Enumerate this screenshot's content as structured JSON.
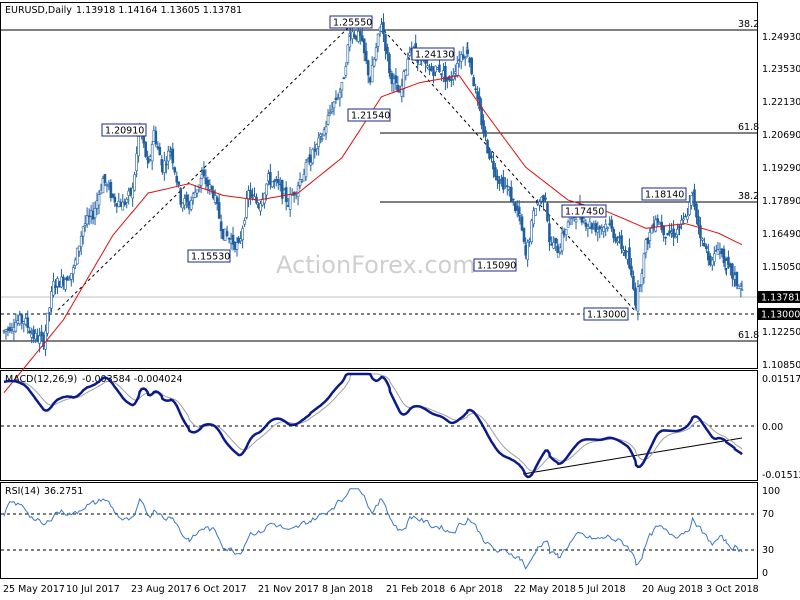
{
  "header": {
    "symbol": "EURUSD,Daily",
    "ohlc": "1.13918 1.14164 1.13605 1.13781"
  },
  "watermark": "ActionForex.com",
  "colors": {
    "candles": "#1f5fa0",
    "ma": "#e01010",
    "macd": "#0a1a8a",
    "signal": "#a0a0a0",
    "rsi": "#3a78c8",
    "box_border": "#1a2a8a",
    "grid_dash": "#000000"
  },
  "chart_data": [
    {
      "type": "candlestick",
      "title": "EURUSD,Daily",
      "price_axis_ticks": [
        "1.24930",
        "1.23530",
        "1.22130",
        "1.20690",
        "1.19290",
        "1.17890",
        "1.16490",
        "1.15050",
        "1.13650",
        "1.12250",
        "1.10850"
      ],
      "ylim": [
        1.1045,
        1.2595
      ],
      "current_price": "1.13781",
      "support_label": "1.13000",
      "date_ticks": [
        "25 May 2017",
        "10 Jul 2017",
        "23 Aug 2017",
        "6 Oct 2017",
        "21 Nov 2017",
        "8 Jan 2018",
        "21 Feb 2018",
        "6 Apr 2018",
        "22 May 2018",
        "5 Jul 2018",
        "20 Aug 2018",
        "3 Oct 2018"
      ],
      "annotations": [
        "1.25550",
        "1.24130",
        "1.21540",
        "1.20910",
        "1.15530",
        "1.15090",
        "1.17450",
        "1.18140",
        "1.13000"
      ],
      "fib_labels": [
        "38.2",
        "61.8",
        "38.2",
        "61.8"
      ],
      "price_path": [
        [
          "2017-05-25",
          1.12
        ],
        [
          "2017-06-01",
          1.124
        ],
        [
          "2017-06-08",
          1.125
        ],
        [
          "2017-06-15",
          1.118
        ],
        [
          "2017-06-22",
          1.116
        ],
        [
          "2017-06-29",
          1.14
        ],
        [
          "2017-07-06",
          1.142
        ],
        [
          "2017-07-13",
          1.146
        ],
        [
          "2017-07-20",
          1.165
        ],
        [
          "2017-07-27",
          1.17
        ],
        [
          "2017-08-03",
          1.185
        ],
        [
          "2017-08-10",
          1.177
        ],
        [
          "2017-08-17",
          1.174
        ],
        [
          "2017-08-24",
          1.18
        ],
        [
          "2017-08-29",
          1.207
        ],
        [
          "2017-09-04",
          1.19
        ],
        [
          "2017-09-08",
          1.205
        ],
        [
          "2017-09-14",
          1.19
        ],
        [
          "2017-09-20",
          1.198
        ],
        [
          "2017-09-27",
          1.176
        ],
        [
          "2017-10-03",
          1.174
        ],
        [
          "2017-10-12",
          1.186
        ],
        [
          "2017-10-20",
          1.179
        ],
        [
          "2017-10-27",
          1.162
        ],
        [
          "2017-11-07",
          1.156
        ],
        [
          "2017-11-14",
          1.179
        ],
        [
          "2017-11-21",
          1.174
        ],
        [
          "2017-11-28",
          1.185
        ],
        [
          "2017-12-05",
          1.182
        ],
        [
          "2017-12-12",
          1.175
        ],
        [
          "2017-12-19",
          1.183
        ],
        [
          "2017-12-28",
          1.194
        ],
        [
          "2018-01-05",
          1.203
        ],
        [
          "2018-01-12",
          1.216
        ],
        [
          "2018-01-19",
          1.224
        ],
        [
          "2018-01-25",
          1.248
        ],
        [
          "2018-02-01",
          1.245
        ],
        [
          "2018-02-08",
          1.227
        ],
        [
          "2018-02-16",
          1.252
        ],
        [
          "2018-02-22",
          1.23
        ],
        [
          "2018-03-01",
          1.22
        ],
        [
          "2018-03-08",
          1.241
        ],
        [
          "2018-03-15",
          1.236
        ],
        [
          "2018-03-22",
          1.231
        ],
        [
          "2018-03-29",
          1.232
        ],
        [
          "2018-04-05",
          1.226
        ],
        [
          "2018-04-12",
          1.237
        ],
        [
          "2018-04-18",
          1.24
        ],
        [
          "2018-04-25",
          1.217
        ],
        [
          "2018-05-02",
          1.198
        ],
        [
          "2018-05-09",
          1.186
        ],
        [
          "2018-05-16",
          1.181
        ],
        [
          "2018-05-25",
          1.168
        ],
        [
          "2018-05-29",
          1.152
        ],
        [
          "2018-06-05",
          1.174
        ],
        [
          "2018-06-12",
          1.178
        ],
        [
          "2018-06-15",
          1.158
        ],
        [
          "2018-06-21",
          1.155
        ],
        [
          "2018-06-28",
          1.167
        ],
        [
          "2018-07-05",
          1.171
        ],
        [
          "2018-07-12",
          1.166
        ],
        [
          "2018-07-19",
          1.164
        ],
        [
          "2018-07-26",
          1.166
        ],
        [
          "2018-08-02",
          1.159
        ],
        [
          "2018-08-09",
          1.152
        ],
        [
          "2018-08-15",
          1.132
        ],
        [
          "2018-08-22",
          1.157
        ],
        [
          "2018-08-29",
          1.169
        ],
        [
          "2018-09-05",
          1.162
        ],
        [
          "2018-09-12",
          1.162
        ],
        [
          "2018-09-19",
          1.168
        ],
        [
          "2018-09-24",
          1.178
        ],
        [
          "2018-10-01",
          1.158
        ],
        [
          "2018-10-08",
          1.149
        ],
        [
          "2018-10-12",
          1.157
        ],
        [
          "2018-10-18",
          1.148
        ],
        [
          "2018-10-24",
          1.142
        ],
        [
          "2018-10-29",
          1.1378
        ]
      ],
      "ma_path": [
        [
          "2017-05-25",
          1.094
        ],
        [
          "2017-07-06",
          1.125
        ],
        [
          "2017-08-10",
          1.161
        ],
        [
          "2017-09-04",
          1.179
        ],
        [
          "2017-10-03",
          1.183
        ],
        [
          "2017-10-27",
          1.178
        ],
        [
          "2017-11-21",
          1.176
        ],
        [
          "2017-12-19",
          1.179
        ],
        [
          "2018-01-19",
          1.194
        ],
        [
          "2018-02-16",
          1.22
        ],
        [
          "2018-03-15",
          1.226
        ],
        [
          "2018-04-12",
          1.229
        ],
        [
          "2018-05-02",
          1.212
        ],
        [
          "2018-05-29",
          1.19
        ],
        [
          "2018-06-28",
          1.176
        ],
        [
          "2018-07-26",
          1.171
        ],
        [
          "2018-08-22",
          1.164
        ],
        [
          "2018-09-19",
          1.166
        ],
        [
          "2018-10-12",
          1.162
        ],
        [
          "2018-10-29",
          1.157
        ]
      ]
    },
    {
      "type": "line",
      "title": "MACD(12,26,9)",
      "values_text": "-0.003584 -0.004024",
      "y_ticks": [
        "0.015178",
        "0.00",
        "-0.015126"
      ],
      "ylim": [
        -0.0175,
        0.0175
      ]
    },
    {
      "type": "line",
      "title": "RSI(14)",
      "values_text": "36.2751",
      "y_ticks": [
        "100",
        "70",
        "30",
        "0"
      ],
      "ylim": [
        0,
        100
      ]
    }
  ]
}
